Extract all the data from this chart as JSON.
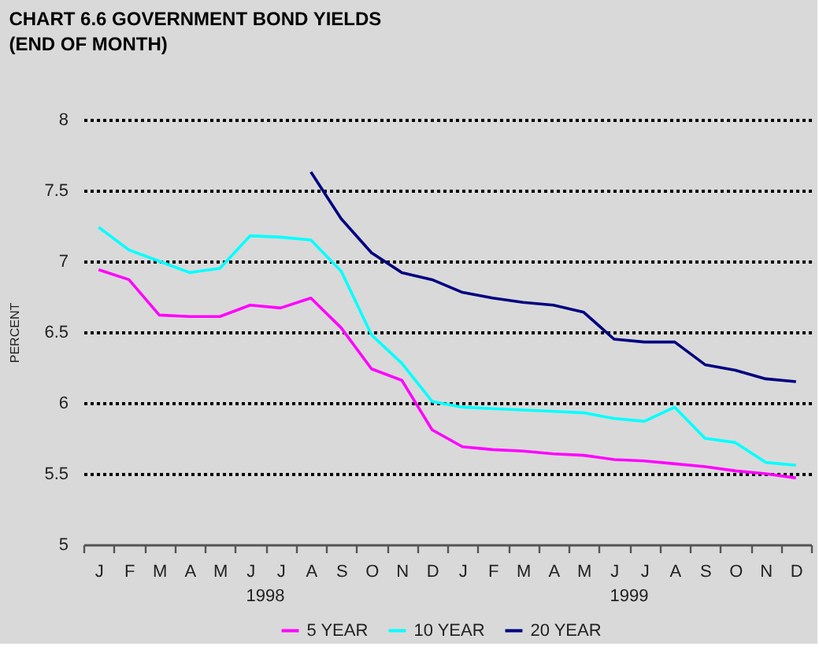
{
  "chart_data": {
    "type": "line",
    "title": "CHART 6.6 GOVERNMENT BOND YIELDS",
    "subtitle": "(END OF MONTH)",
    "ylabel": "PERCENT",
    "categories": [
      "J",
      "F",
      "M",
      "A",
      "M",
      "J",
      "J",
      "A",
      "S",
      "O",
      "N",
      "D",
      "J",
      "F",
      "M",
      "A",
      "M",
      "J",
      "J",
      "A",
      "S",
      "O",
      "N",
      "D"
    ],
    "annotations": [
      "1998",
      "1999"
    ],
    "ylim": [
      5,
      8
    ],
    "yticks": [
      5,
      5.5,
      6,
      6.5,
      7,
      7.5,
      8
    ],
    "grid": "y",
    "legend": "bottom",
    "line_style": "solid",
    "series": [
      {
        "name": "5 YEAR",
        "color": "#ff00ff",
        "values": [
          6.94,
          6.87,
          6.62,
          6.61,
          6.61,
          6.69,
          6.67,
          6.74,
          6.53,
          6.24,
          6.16,
          5.81,
          5.69,
          5.67,
          5.66,
          5.64,
          5.63,
          5.6,
          5.59,
          5.57,
          5.55,
          5.52,
          5.5,
          5.47
        ]
      },
      {
        "name": "10 YEAR",
        "color": "#00ffff",
        "values": [
          7.24,
          7.08,
          7.0,
          6.92,
          6.95,
          7.18,
          7.17,
          7.15,
          6.93,
          6.48,
          6.28,
          6.01,
          5.97,
          5.96,
          5.95,
          5.94,
          5.93,
          5.89,
          5.87,
          5.97,
          5.75,
          5.72,
          5.58,
          5.56
        ]
      },
      {
        "name": "20 YEAR",
        "color": "#000080",
        "values": [
          null,
          null,
          null,
          null,
          null,
          null,
          null,
          7.63,
          7.3,
          7.06,
          6.92,
          6.87,
          6.78,
          6.74,
          6.71,
          6.69,
          6.64,
          6.45,
          6.43,
          6.43,
          6.27,
          6.23,
          6.17,
          6.15
        ]
      }
    ]
  }
}
